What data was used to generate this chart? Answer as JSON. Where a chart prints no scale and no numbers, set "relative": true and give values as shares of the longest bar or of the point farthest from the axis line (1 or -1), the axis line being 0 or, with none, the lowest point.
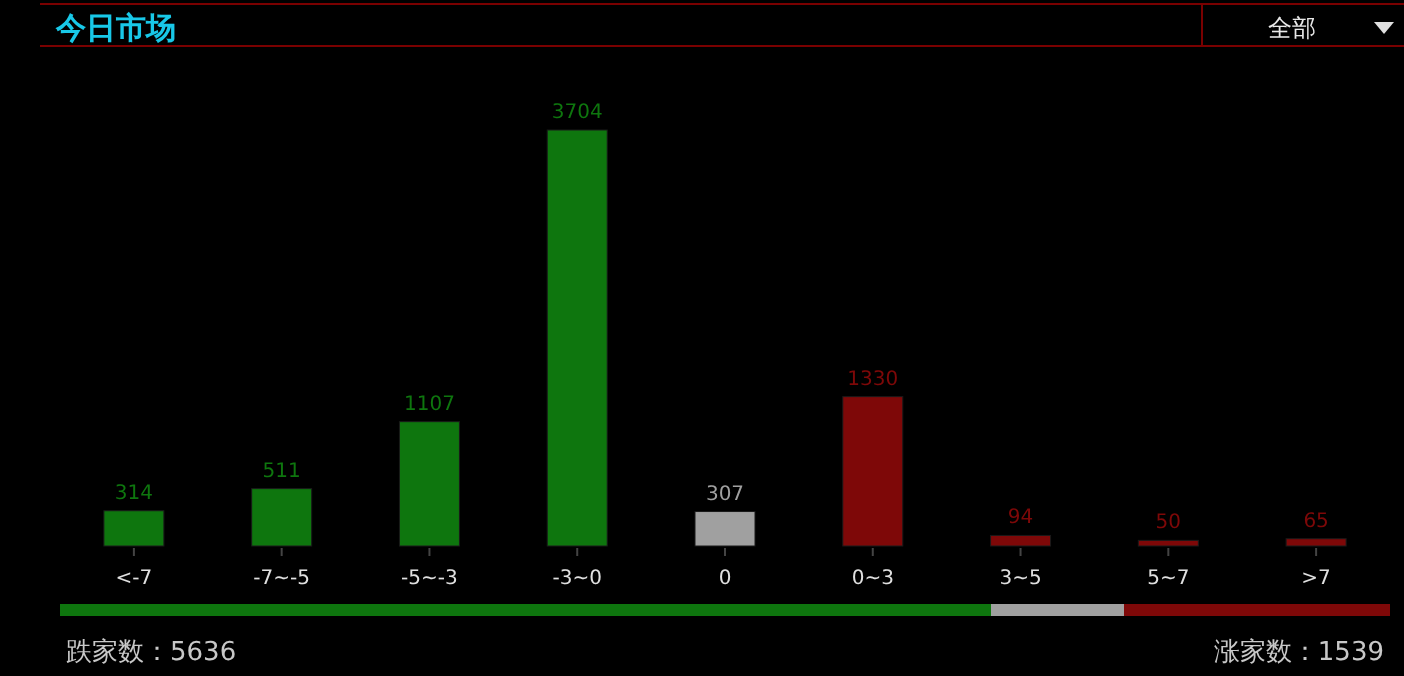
{
  "chart_data": [
    {
      "type": "bar",
      "title": "今日市场",
      "annotations": [
        "全部"
      ],
      "categories": [
        "<-7",
        "-7~-5",
        "-5~-3",
        "-3~0",
        "0",
        "0~3",
        "3~5",
        "5~7",
        ">7"
      ],
      "values": [
        314,
        511,
        1107,
        3704,
        307,
        1330,
        94,
        50,
        65
      ],
      "colors": [
        "#0e760e",
        "#0e760e",
        "#0e760e",
        "#0e760e",
        "#a0a0a0",
        "#7e0808",
        "#7e0808",
        "#7e0808",
        "#7e0808"
      ],
      "data_labels": true
    },
    {
      "type": "bar",
      "orientation": "horizontal",
      "stacked": true,
      "relative": true,
      "categories": [
        null
      ],
      "series": [
        {
          "color": "#0e760e",
          "values": [
            0.7
          ]
        },
        {
          "color": "#a0a0a0",
          "values": [
            0.1
          ]
        },
        {
          "color": "#7e0808",
          "values": [
            0.2
          ]
        }
      ],
      "annotations": [
        "跌家数：5636",
        "涨家数：1539"
      ]
    }
  ]
}
